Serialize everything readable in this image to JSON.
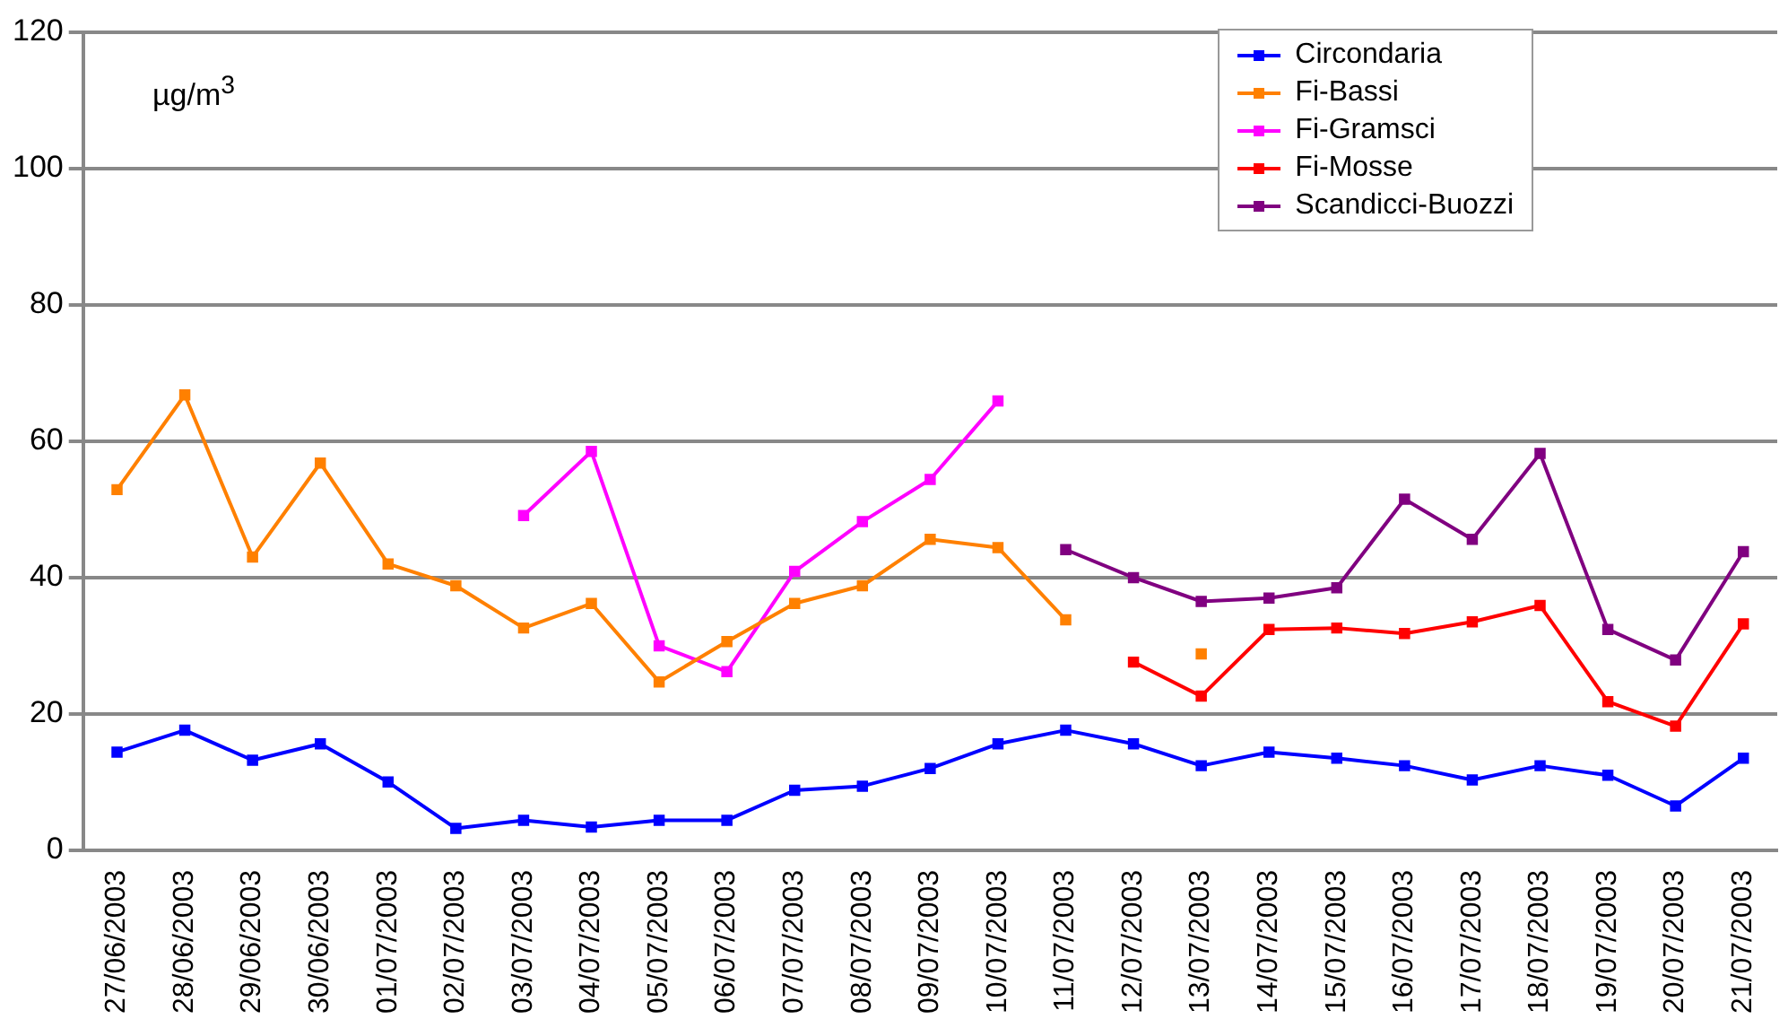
{
  "chart_data": {
    "type": "line",
    "ylabel": "µg/m$^{3}$",
    "categories": [
      "27/06/2003",
      "28/06/2003",
      "29/06/2003",
      "30/06/2003",
      "01/07/2003",
      "02/07/2003",
      "03/07/2003",
      "04/07/2003",
      "05/07/2003",
      "06/07/2003",
      "07/07/2003",
      "08/07/2003",
      "09/07/2003",
      "10/07/2003",
      "11/07/2003",
      "12/07/2003",
      "13/07/2003",
      "14/07/2003",
      "15/07/2003",
      "16/07/2003",
      "17/07/2003",
      "18/07/2003",
      "19/07/2003",
      "20/07/2003",
      "21/07/2003"
    ],
    "series": [
      {
        "name": "Circondaria",
        "color": "#0000ff",
        "values": [
          14.4,
          17.6,
          13.2,
          15.6,
          10,
          3.2,
          4.4,
          3.4,
          4.4,
          4.4,
          8.8,
          9.4,
          12,
          15.6,
          17.6,
          15.6,
          12.4,
          14.4,
          13.5,
          12.4,
          10.3,
          12.4,
          11,
          6.5,
          13.5
        ]
      },
      {
        "name": "Fi-Bassi",
        "color": "#ff8000",
        "values": [
          52.9,
          66.8,
          43,
          56.8,
          42,
          38.8,
          32.6,
          36.2,
          24.7,
          30.6,
          36.2,
          38.8,
          45.6,
          44.4,
          33.8,
          null,
          28.8,
          null,
          null,
          null,
          null,
          null,
          null,
          null,
          null
        ]
      },
      {
        "name": "Fi-Gramsci",
        "color": "#ff00ff",
        "values": [
          null,
          null,
          null,
          null,
          null,
          null,
          49.1,
          58.5,
          30,
          26.2,
          40.9,
          48.2,
          54.4,
          65.9,
          null,
          null,
          null,
          null,
          null,
          null,
          null,
          null,
          null,
          null,
          null
        ]
      },
      {
        "name": "Fi-Mosse",
        "color": "#ff0000",
        "values": [
          null,
          null,
          null,
          null,
          null,
          null,
          null,
          null,
          null,
          null,
          null,
          null,
          null,
          null,
          null,
          27.6,
          22.6,
          32.4,
          32.6,
          31.8,
          33.5,
          35.9,
          21.8,
          18.2,
          33.2
        ]
      },
      {
        "name": "Scandicci-Buozzi",
        "color": "#800080",
        "values": [
          null,
          null,
          null,
          null,
          null,
          null,
          null,
          null,
          null,
          null,
          null,
          null,
          null,
          null,
          44.1,
          40,
          36.5,
          37,
          38.5,
          51.5,
          45.6,
          58.2,
          32.4,
          27.9,
          43.8
        ]
      }
    ],
    "ylim": [
      0,
      120
    ],
    "yticks": [
      0,
      20,
      40,
      60,
      80,
      100,
      120
    ],
    "grid": "y",
    "legend": "top right",
    "marker": "square",
    "line_style": "solid"
  }
}
